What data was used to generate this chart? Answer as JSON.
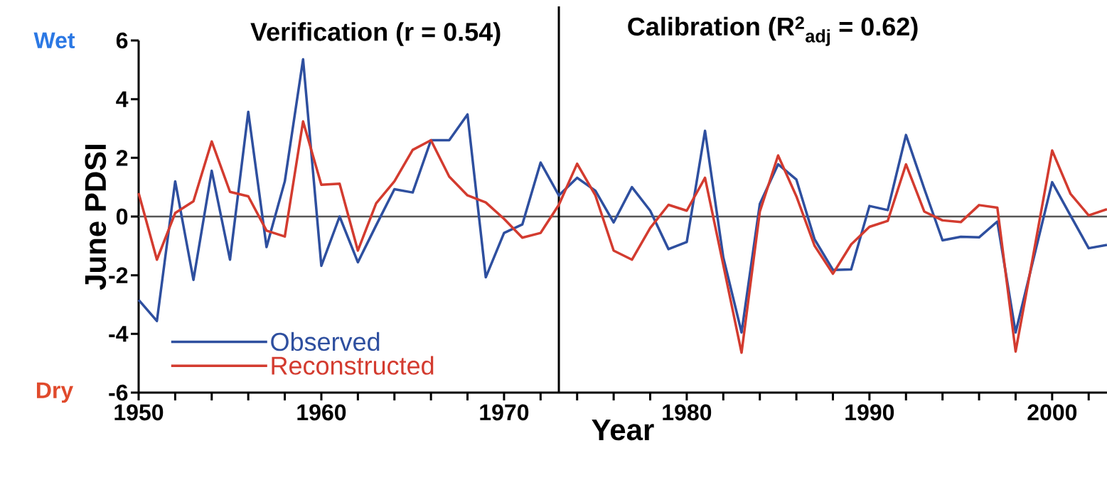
{
  "chart_data": {
    "type": "line",
    "xlabel": "Year",
    "ylabel": "June PDSI",
    "annotations": [
      "Verification (r = 0.54)",
      "Calibration (R$^{2}$$_{adj}$ = 0.62)",
      "Wet",
      "Dry"
    ],
    "x": [
      1950,
      1951,
      1952,
      1953,
      1954,
      1955,
      1956,
      1957,
      1958,
      1959,
      1960,
      1961,
      1962,
      1963,
      1964,
      1965,
      1966,
      1967,
      1968,
      1969,
      1970,
      1971,
      1972,
      1973,
      1974,
      1975,
      1976,
      1977,
      1978,
      1979,
      1980,
      1981,
      1982,
      1983,
      1984,
      1985,
      1986,
      1987,
      1988,
      1989,
      1990,
      1991,
      1992,
      1993,
      1994,
      1995,
      1996,
      1997,
      1998,
      1999,
      2000,
      2001,
      2002,
      2003
    ],
    "series": [
      {
        "name": "Observed",
        "color": "#2e4f9f",
        "values": [
          -2.84,
          -3.56,
          1.2,
          -2.16,
          1.56,
          -1.47,
          3.57,
          -1.04,
          1.2,
          5.36,
          -1.68,
          0,
          -1.56,
          -0.3,
          0.93,
          0.82,
          2.6,
          2.6,
          3.48,
          -2.07,
          -0.56,
          -0.27,
          1.84,
          0.72,
          1.32,
          0.88,
          -0.2,
          1.0,
          0.2,
          -1.11,
          -0.87,
          2.92,
          -1.39,
          -3.95,
          0.43,
          1.78,
          1.26,
          -0.78,
          -1.82,
          -1.8,
          0.36,
          0.22,
          2.78,
          0.95,
          -0.81,
          -0.69,
          -0.71,
          -0.17,
          -3.95,
          -1.39,
          1.17,
          0.04,
          -1.08,
          -0.97
        ]
      },
      {
        "name": "Reconstructed",
        "color": "#d33b2f",
        "values": [
          0.8,
          -1.47,
          0.12,
          0.52,
          2.56,
          0.84,
          0.69,
          -0.48,
          -0.68,
          3.24,
          1.08,
          1.12,
          -1.16,
          0.45,
          1.2,
          2.27,
          2.6,
          1.36,
          0.72,
          0.48,
          -0.08,
          -0.72,
          -0.56,
          0.4,
          1.8,
          0.72,
          -1.16,
          -1.47,
          -0.39,
          0.4,
          0.2,
          1.32,
          -1.65,
          -4.64,
          0.17,
          2.08,
          0.69,
          -1.0,
          -1.95,
          -0.95,
          -0.35,
          -0.15,
          1.78,
          0.17,
          -0.13,
          -0.19,
          0.39,
          0.3,
          -4.6,
          -1.2,
          2.25,
          0.78,
          0.04,
          0.25
        ]
      }
    ],
    "xlim": [
      1950,
      2003
    ],
    "ylim": [
      -6,
      6
    ],
    "xticks": [
      1950,
      {
        "value": 1952,
        "label": null
      },
      {
        "value": 1954,
        "label": null
      },
      {
        "value": 1956,
        "label": null
      },
      {
        "value": 1958,
        "label": null
      },
      1960,
      {
        "value": 1962,
        "label": null
      },
      {
        "value": 1964,
        "label": null
      },
      {
        "value": 1966,
        "label": null
      },
      {
        "value": 1968,
        "label": null
      },
      1970,
      {
        "value": 1972,
        "label": null
      },
      {
        "value": 1974,
        "label": null
      },
      {
        "value": 1976,
        "label": null
      },
      {
        "value": 1978,
        "label": null
      },
      1980,
      {
        "value": 1982,
        "label": null
      },
      {
        "value": 1984,
        "label": null
      },
      {
        "value": 1986,
        "label": null
      },
      {
        "value": 1988,
        "label": null
      },
      1990,
      {
        "value": 1992,
        "label": null
      },
      {
        "value": 1994,
        "label": null
      },
      {
        "value": 1996,
        "label": null
      },
      {
        "value": 1998,
        "label": null
      },
      2000,
      {
        "value": 2002,
        "label": null
      }
    ],
    "yticks": [
      -6,
      -4,
      -2,
      0,
      2,
      4,
      6
    ],
    "ref_lines": [
      {
        "axis": "y",
        "value": 0,
        "color": "#555555"
      },
      {
        "axis": "x",
        "value": 1973,
        "color": "#000000"
      }
    ],
    "legend": "bottom left",
    "grid": false
  }
}
